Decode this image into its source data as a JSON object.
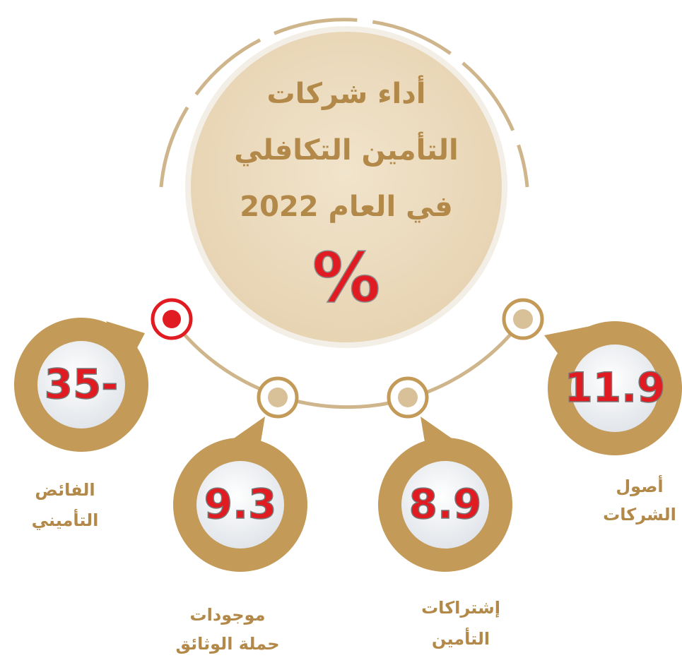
{
  "title": {
    "lines": [
      "أداء شركات",
      "التأمين التكافلي",
      "في العام  2022"
    ],
    "unit": "%"
  },
  "items": [
    {
      "value": "35-",
      "label": [
        "الفائض",
        "التأميني"
      ]
    },
    {
      "value": "9.3",
      "label": [
        "موجودات",
        "حملة الوثائق"
      ]
    },
    {
      "value": "8.9",
      "label": [
        "إشتراكات",
        "التأمين"
      ]
    },
    {
      "value": "11.9",
      "label": [
        "أصول",
        "الشركات"
      ]
    }
  ]
}
